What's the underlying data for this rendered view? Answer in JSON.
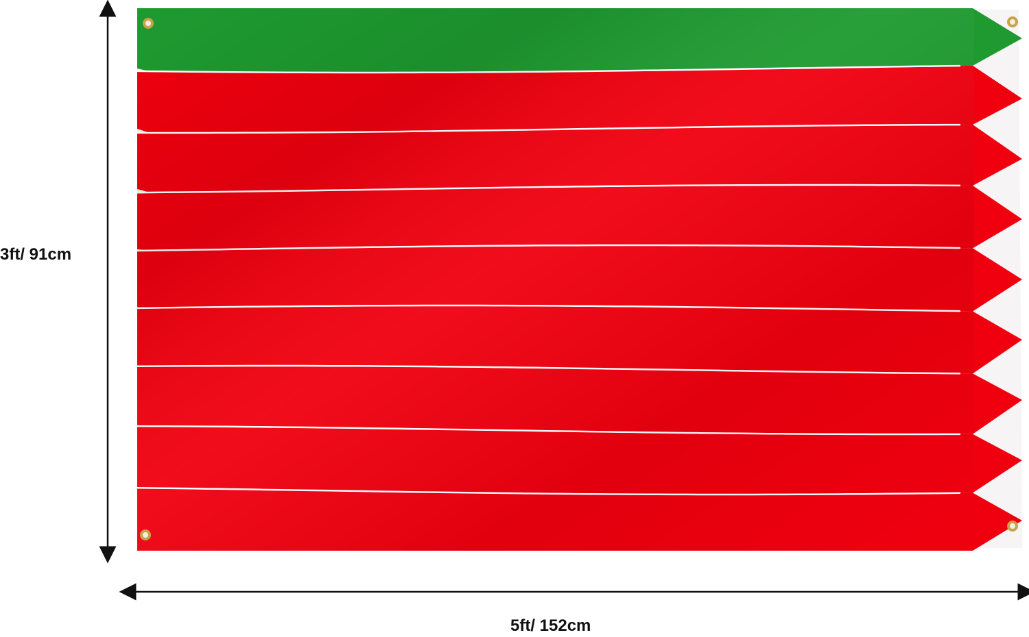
{
  "dimensions": {
    "height_label": "3ft/ 91cm",
    "width_label": "5ft/ 152cm"
  },
  "flag": {
    "stripes": [
      {
        "color_name": "green",
        "color": "#1e9a30"
      },
      {
        "color_name": "red",
        "color": "#f0000f"
      },
      {
        "color_name": "red",
        "color": "#f0000f"
      },
      {
        "color_name": "red",
        "color": "#f0000f"
      },
      {
        "color_name": "red",
        "color": "#f0000f"
      },
      {
        "color_name": "red",
        "color": "#f0000f"
      },
      {
        "color_name": "red",
        "color": "#f0000f"
      },
      {
        "color_name": "red",
        "color": "#f0000f"
      },
      {
        "color_name": "red",
        "color": "#f0000f"
      }
    ],
    "divider_color": "#ffffff",
    "grommet_color": "#c8a34a",
    "grommets": [
      "top-left",
      "top-right",
      "bottom-left",
      "bottom-right"
    ]
  },
  "arrow_color": "#111111"
}
